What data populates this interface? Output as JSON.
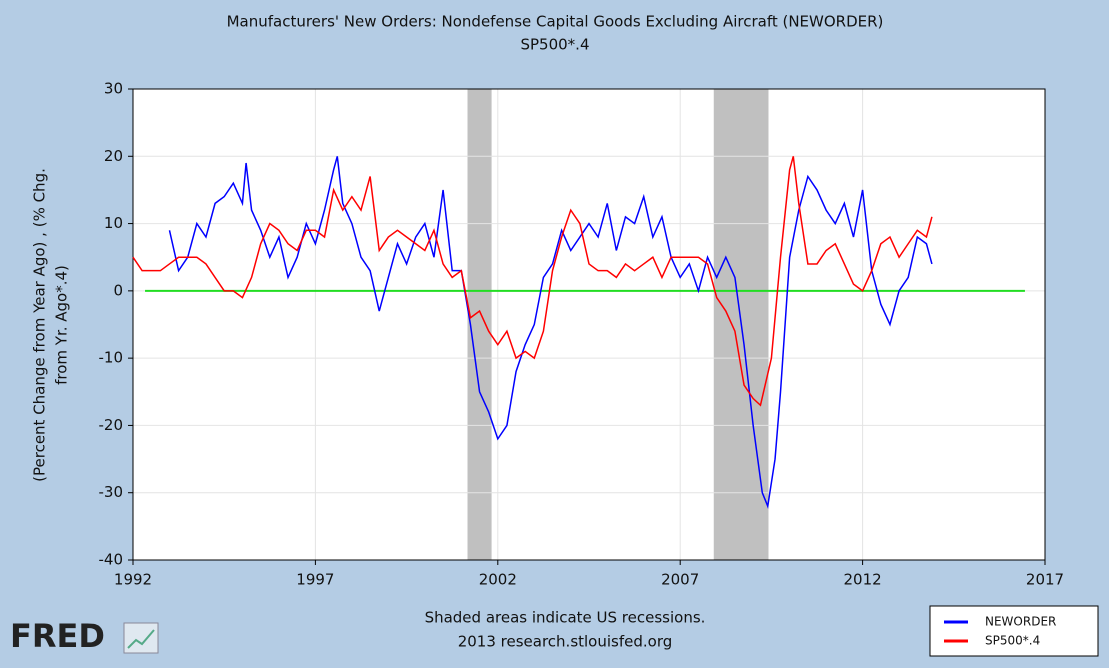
{
  "chart_data": {
    "type": "line",
    "title": "Manufacturers' New Orders: Nondefense Capital Goods Excluding Aircraft (NEWORDER)",
    "subtitle": "SP500*.4",
    "y_label": [
      "(Percent Change from Year Ago) , (% Chg.",
      "from Yr. Ago*.4)"
    ],
    "note": [
      "Shaded areas indicate US recessions.",
      "2013 research.stlouisfed.org"
    ],
    "logo": "FRED",
    "xlim": [
      1992,
      2017
    ],
    "xticks": [
      1992,
      1997,
      2002,
      2007,
      2012,
      2017
    ],
    "ylim": [
      -40,
      30
    ],
    "yticks": [
      -40,
      -30,
      -20,
      -10,
      0,
      10,
      20,
      30
    ],
    "grid": true,
    "legend": "bottom-right",
    "recessions": [
      {
        "start": 2001.17,
        "end": 2001.83,
        "color": "#c0c0c0"
      },
      {
        "start": 2007.92,
        "end": 2009.42,
        "color": "#c0c0c0"
      }
    ],
    "reference_line": {
      "y": 0,
      "x": [
        1992.33,
        2016.45
      ],
      "color": "#22dd22"
    },
    "series": [
      {
        "name": "NEWORDER",
        "color": "#0000ff",
        "x": [
          1993,
          1993.25,
          1993.5,
          1993.75,
          1994,
          1994.25,
          1994.5,
          1994.75,
          1995,
          1995.1,
          1995.25,
          1995.5,
          1995.75,
          1996,
          1996.25,
          1996.5,
          1996.75,
          1997,
          1997.25,
          1997.5,
          1997.6,
          1997.75,
          1998,
          1998.25,
          1998.5,
          1998.75,
          1999,
          1999.25,
          1999.5,
          1999.75,
          2000,
          2000.25,
          2000.5,
          2000.75,
          2001,
          2001.25,
          2001.5,
          2001.75,
          2002,
          2002.25,
          2002.5,
          2002.75,
          2003,
          2003.25,
          2003.5,
          2003.75,
          2004,
          2004.25,
          2004.5,
          2004.75,
          2005,
          2005.25,
          2005.5,
          2005.75,
          2006,
          2006.25,
          2006.5,
          2006.75,
          2007,
          2007.25,
          2007.5,
          2007.75,
          2008,
          2008.25,
          2008.5,
          2008.75,
          2009,
          2009.25,
          2009.4,
          2009.6,
          2009.75,
          2010,
          2010.25,
          2010.5,
          2010.75,
          2011,
          2011.25,
          2011.5,
          2011.75,
          2012,
          2012.25,
          2012.5,
          2012.75,
          2013,
          2013.25,
          2013.5,
          2013.75,
          2013.9
        ],
        "values": [
          9,
          3,
          5,
          10,
          8,
          13,
          14,
          16,
          13,
          19,
          12,
          9,
          5,
          8,
          2,
          5,
          10,
          7,
          12,
          18,
          20,
          13,
          10,
          5,
          3,
          -3,
          2,
          7,
          4,
          8,
          10,
          5,
          15,
          3,
          3,
          -5,
          -15,
          -18,
          -22,
          -20,
          -12,
          -8,
          -5,
          2,
          4,
          9,
          6,
          8,
          10,
          8,
          13,
          6,
          11,
          10,
          14,
          8,
          11,
          5,
          2,
          4,
          0,
          5,
          2,
          5,
          2,
          -8,
          -20,
          -30,
          -32,
          -25,
          -15,
          5,
          12,
          17,
          15,
          12,
          10,
          13,
          8,
          15,
          3,
          -2,
          -5,
          0,
          2,
          8,
          7,
          4
        ]
      },
      {
        "name": "SP500*.4",
        "color": "#ff0000",
        "x": [
          1992,
          1992.25,
          1992.5,
          1992.75,
          1993,
          1993.25,
          1993.5,
          1993.75,
          1994,
          1994.25,
          1994.5,
          1994.75,
          1995,
          1995.25,
          1995.5,
          1995.75,
          1996,
          1996.25,
          1996.5,
          1996.75,
          1997,
          1997.25,
          1997.5,
          1997.75,
          1998,
          1998.25,
          1998.5,
          1998.75,
          1999,
          1999.25,
          1999.5,
          1999.75,
          2000,
          2000.25,
          2000.5,
          2000.75,
          2001,
          2001.25,
          2001.5,
          2001.75,
          2002,
          2002.25,
          2002.5,
          2002.75,
          2003,
          2003.25,
          2003.5,
          2003.75,
          2004,
          2004.25,
          2004.5,
          2004.75,
          2005,
          2005.25,
          2005.5,
          2005.75,
          2006,
          2006.25,
          2006.5,
          2006.75,
          2007,
          2007.25,
          2007.5,
          2007.75,
          2008,
          2008.25,
          2008.5,
          2008.75,
          2009,
          2009.2,
          2009.5,
          2009.75,
          2010,
          2010.1,
          2010.25,
          2010.5,
          2010.75,
          2011,
          2011.25,
          2011.5,
          2011.75,
          2012,
          2012.25,
          2012.5,
          2012.75,
          2013,
          2013.25,
          2013.5,
          2013.75,
          2013.9
        ],
        "values": [
          5,
          3,
          3,
          3,
          4,
          5,
          5,
          5,
          4,
          2,
          0,
          0,
          -1,
          2,
          7,
          10,
          9,
          7,
          6,
          9,
          9,
          8,
          15,
          12,
          14,
          12,
          17,
          6,
          8,
          9,
          8,
          7,
          6,
          9,
          4,
          2,
          3,
          -4,
          -3,
          -6,
          -8,
          -6,
          -10,
          -9,
          -10,
          -6,
          3,
          8,
          12,
          10,
          4,
          3,
          3,
          2,
          4,
          3,
          4,
          5,
          2,
          5,
          5,
          5,
          5,
          4,
          -1,
          -3,
          -6,
          -14,
          -16,
          -17,
          -10,
          5,
          18,
          20,
          13,
          4,
          4,
          6,
          7,
          4,
          1,
          0,
          3,
          7,
          8,
          5,
          7,
          9,
          8,
          11
        ]
      }
    ]
  }
}
